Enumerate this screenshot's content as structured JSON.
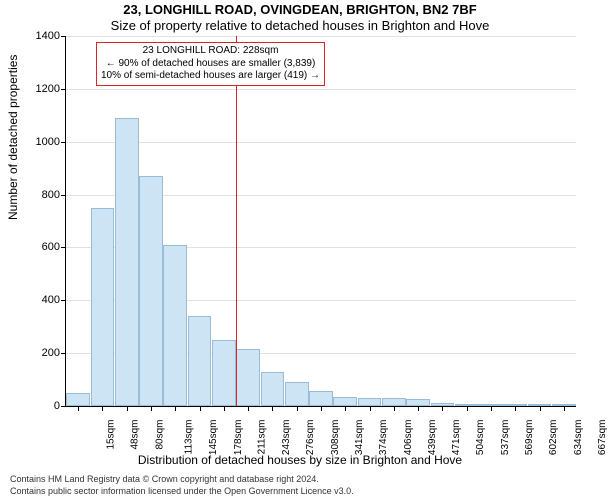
{
  "title_line1": "23, LONGHILL ROAD, OVINGDEAN, BRIGHTON, BN2 7BF",
  "title_line2": "Size of property relative to detached houses in Brighton and Hove",
  "chart": {
    "type": "histogram",
    "bar_fill_color": "#cde4f5",
    "bar_border_color": "#9bbcd6",
    "background_color": "#ffffff",
    "grid_color": "#e0e0e0",
    "axis_color": "#000000",
    "refline_color": "#d62728",
    "refline_x_index": 7,
    "ylabel": "Number of detached properties",
    "xlabel": "Distribution of detached houses by size in Brighton and Hove",
    "ylim": [
      0,
      1400
    ],
    "ytick_step": 200,
    "yticks": [
      0,
      200,
      400,
      600,
      800,
      1000,
      1200,
      1400
    ],
    "x_categories": [
      "15sqm",
      "48sqm",
      "80sqm",
      "113sqm",
      "145sqm",
      "178sqm",
      "211sqm",
      "243sqm",
      "276sqm",
      "308sqm",
      "341sqm",
      "374sqm",
      "406sqm",
      "439sqm",
      "471sqm",
      "504sqm",
      "537sqm",
      "569sqm",
      "602sqm",
      "634sqm",
      "667sqm"
    ],
    "values": [
      50,
      750,
      1090,
      870,
      610,
      340,
      250,
      215,
      130,
      90,
      55,
      35,
      30,
      30,
      25,
      10,
      8,
      8,
      6,
      6,
      6
    ],
    "tick_fontsize": 11,
    "label_fontsize": 12,
    "title_fontsize": 13
  },
  "callout": {
    "title": "23 LONGHILL ROAD: 228sqm",
    "line1": "← 90% of detached houses are smaller (3,839)",
    "line2": "10% of semi-detached houses are larger (419) →",
    "border_color": "#d62728",
    "fontsize": 10
  },
  "footer_line1": "Contains HM Land Registry data © Crown copyright and database right 2024.",
  "footer_line2": "Contains public sector information licensed under the Open Government Licence v3.0."
}
